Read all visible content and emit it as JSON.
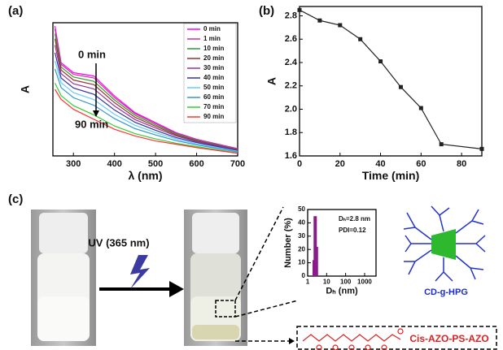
{
  "chart_data": [
    {
      "type": "line",
      "panel_label": "(a)",
      "x_label": "λ (nm)",
      "y_label": "A",
      "x": [
        255,
        270,
        300,
        350,
        400,
        450,
        500,
        550,
        600,
        700
      ],
      "xlim": [
        250,
        700
      ],
      "xticks": [
        300,
        400,
        500,
        600,
        700
      ],
      "ylim": [
        0.5,
        4.5
      ],
      "annotations": [
        "0 min",
        "90 min"
      ],
      "series": [
        {
          "name": "0 min",
          "color": "#ff00ff",
          "values": [
            4.4,
            3.3,
            3.0,
            2.9,
            2.3,
            1.8,
            1.5,
            1.2,
            1.0,
            0.72
          ]
        },
        {
          "name": "1 min",
          "color": "#cc3399",
          "values": [
            4.31,
            3.25,
            2.95,
            2.84,
            2.25,
            1.77,
            1.47,
            1.18,
            0.99,
            0.71
          ]
        },
        {
          "name": "10 min",
          "color": "#339933",
          "values": [
            4.17,
            3.17,
            2.87,
            2.74,
            2.18,
            1.72,
            1.43,
            1.16,
            0.97,
            0.7
          ]
        },
        {
          "name": "20 min",
          "color": "#993333",
          "values": [
            4.02,
            3.08,
            2.78,
            2.64,
            2.1,
            1.66,
            1.39,
            1.13,
            0.95,
            0.69
          ]
        },
        {
          "name": "30 min",
          "color": "#993399",
          "values": [
            3.83,
            2.97,
            2.67,
            2.51,
            2.0,
            1.59,
            1.34,
            1.1,
            0.93,
            0.68
          ]
        },
        {
          "name": "40 min",
          "color": "#333399",
          "values": [
            3.6,
            2.84,
            2.54,
            2.35,
            1.88,
            1.51,
            1.27,
            1.05,
            0.9,
            0.66
          ]
        },
        {
          "name": "50 min",
          "color": "#66ccff",
          "values": [
            3.36,
            2.7,
            2.4,
            2.19,
            1.75,
            1.42,
            1.2,
            1.01,
            0.86,
            0.64
          ]
        },
        {
          "name": "60 min",
          "color": "#3399cc",
          "values": [
            3.11,
            2.55,
            2.25,
            2.02,
            1.62,
            1.32,
            1.13,
            0.96,
            0.83,
            0.62
          ]
        },
        {
          "name": "70 min",
          "color": "#33cc33",
          "values": [
            2.69,
            2.31,
            2.01,
            1.73,
            1.4,
            1.17,
            1.01,
            0.88,
            0.78,
            0.59
          ]
        },
        {
          "name": "90 min",
          "color": "#ff3333",
          "values": [
            2.5,
            2.2,
            1.9,
            1.6,
            1.3,
            1.1,
            0.95,
            0.85,
            0.75,
            0.58
          ]
        }
      ]
    },
    {
      "type": "line",
      "panel_label": "(b)",
      "x_label": "Time (min)",
      "y_label": "A",
      "markers": true,
      "x": [
        0,
        10,
        20,
        30,
        40,
        50,
        60,
        70,
        90
      ],
      "series": [
        {
          "color": "#222222",
          "values": [
            2.85,
            2.76,
            2.72,
            2.6,
            2.41,
            2.19,
            2.01,
            1.7,
            1.66
          ]
        }
      ],
      "xlim": [
        0,
        90
      ],
      "xticks": [
        0,
        20,
        40,
        60,
        80
      ],
      "ylim": [
        1.6,
        2.88
      ],
      "yticks": [
        1.6,
        1.8,
        {
          "value": 2,
          "label": "2.0"
        },
        2.2,
        2.4,
        2.6,
        2.8
      ]
    },
    {
      "type": "bar",
      "panel_label": "(c)",
      "x_label": "Dₕ (nm)",
      "y_label": "Number (%)",
      "xlog": true,
      "color": "#8b1a8b",
      "x": [
        2.2,
        2.5,
        2.9
      ],
      "values": [
        12,
        45,
        22
      ],
      "xlim": [
        1,
        4000
      ],
      "xticks": [
        1,
        10,
        100,
        1000
      ],
      "ylim": [
        0,
        50
      ],
      "yticks": [
        0,
        10,
        20,
        30,
        40,
        50
      ],
      "annotations": [
        "Dₕ=2.8 nm",
        "PDI=0.12"
      ]
    }
  ],
  "figure": {
    "uv_label": "UV (365 nm)",
    "dendrimer_label": "CD-g-HPG",
    "polymer_label": "Cis-AZO-PS-AZO"
  }
}
